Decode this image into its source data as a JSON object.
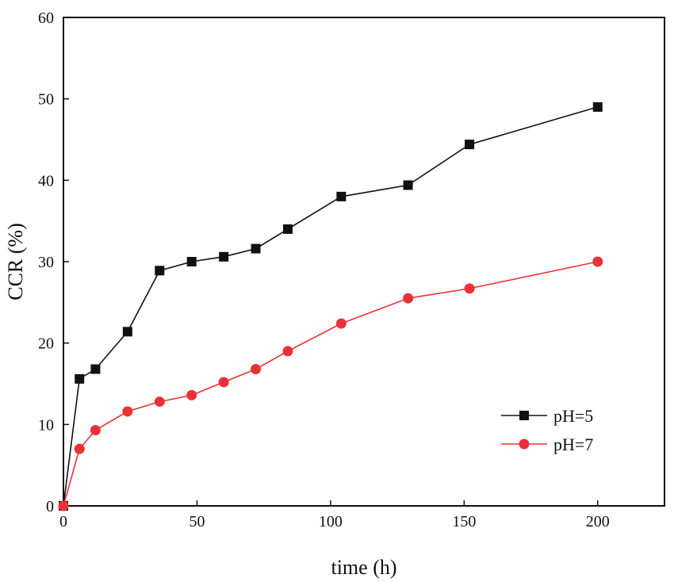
{
  "chart_data": {
    "type": "line",
    "title": "",
    "xlabel": "time (h)",
    "ylabel": "CCR (%)",
    "xlim": [
      0,
      225
    ],
    "ylim": [
      0,
      60
    ],
    "xticks": [
      0,
      50,
      100,
      150,
      200
    ],
    "yticks": [
      0,
      10,
      20,
      30,
      40,
      50,
      60
    ],
    "grid": false,
    "legend_position": "lower-right",
    "series": [
      {
        "name": "pH=5",
        "color": "#111111",
        "marker": "square",
        "x": [
          0,
          6,
          12,
          24,
          36,
          48,
          60,
          72,
          84,
          104,
          129,
          152,
          200
        ],
        "y": [
          0,
          15.6,
          16.8,
          21.4,
          28.9,
          30.0,
          30.6,
          31.6,
          34.0,
          38.0,
          39.4,
          44.4,
          49.0
        ]
      },
      {
        "name": "pH=7",
        "color": "#e8323a",
        "marker": "circle",
        "x": [
          0,
          6,
          12,
          24,
          36,
          48,
          60,
          72,
          84,
          104,
          129,
          152,
          200
        ],
        "y": [
          0,
          7.0,
          9.3,
          11.6,
          12.8,
          13.6,
          15.2,
          16.8,
          19.0,
          22.4,
          25.5,
          26.7,
          30.0
        ]
      }
    ]
  }
}
